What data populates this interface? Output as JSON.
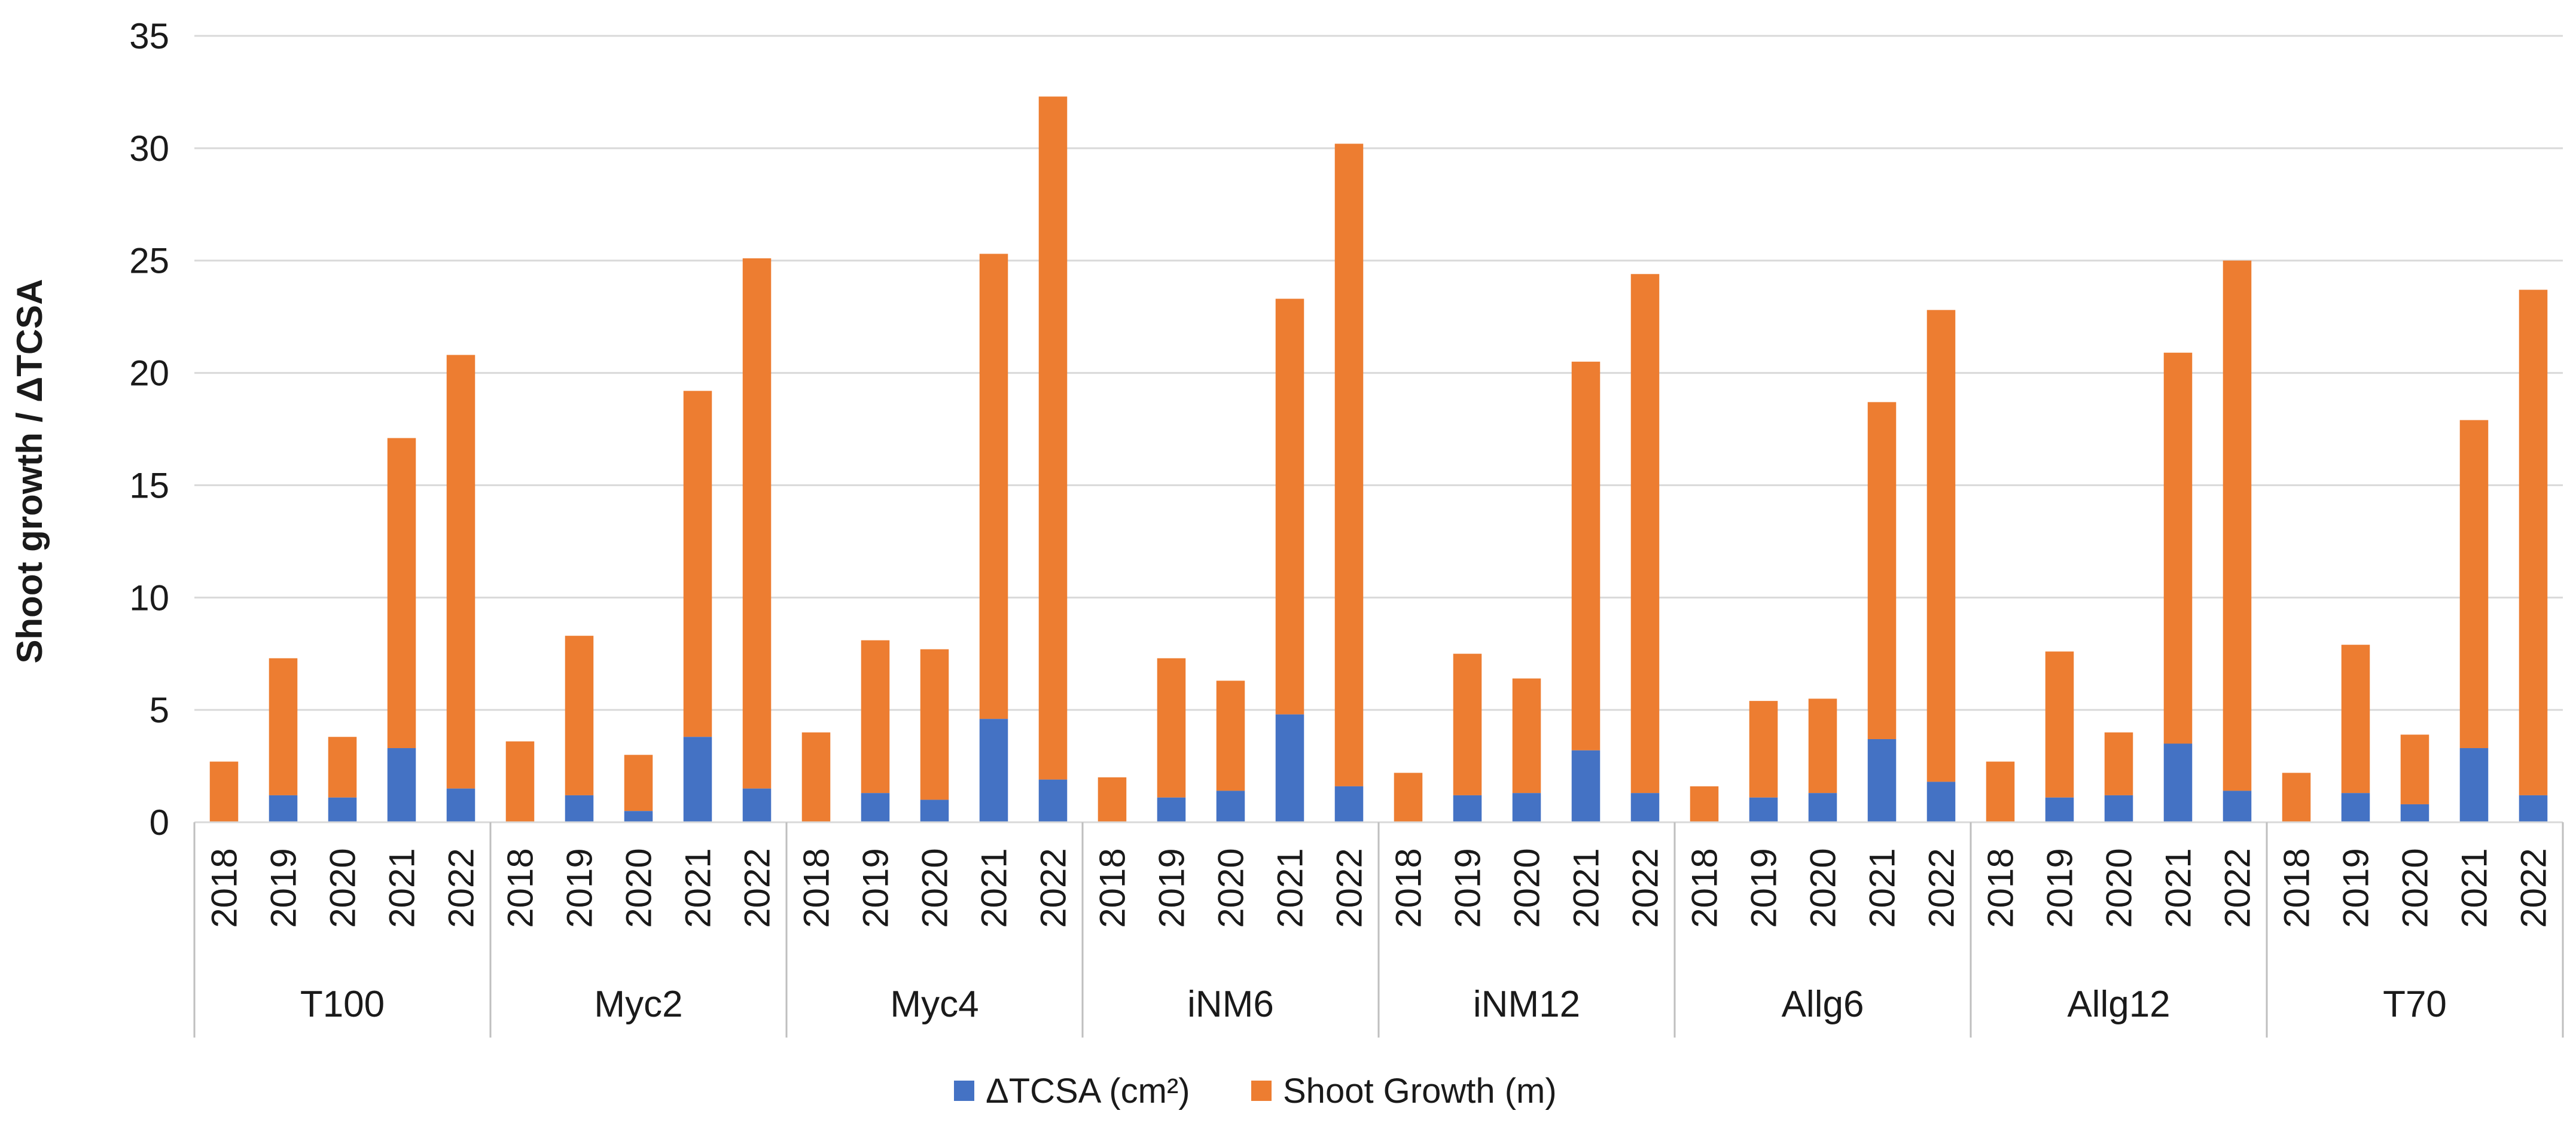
{
  "chart_data": {
    "type": "bar",
    "stacked": true,
    "title": "",
    "xlabel": "",
    "ylabel": "Shoot growth / ΔTCSA",
    "ylim": [
      0,
      35
    ],
    "yticks": [
      0,
      5,
      10,
      15,
      20,
      25,
      30,
      35
    ],
    "grid": true,
    "legend_position": "bottom",
    "groups": [
      {
        "name": "T100",
        "years": [
          "2018",
          "2019",
          "2020",
          "2021",
          "2022"
        ],
        "tcsa": [
          0,
          1.2,
          1.1,
          3.3,
          1.5
        ],
        "total": [
          2.7,
          7.3,
          3.8,
          17.1,
          20.8
        ]
      },
      {
        "name": "Myc2",
        "years": [
          "2018",
          "2019",
          "2020",
          "2021",
          "2022"
        ],
        "tcsa": [
          0,
          1.2,
          0.5,
          3.8,
          1.5
        ],
        "total": [
          3.6,
          8.3,
          3.0,
          19.2,
          25.1
        ]
      },
      {
        "name": "Myc4",
        "years": [
          "2018",
          "2019",
          "2020",
          "2021",
          "2022"
        ],
        "tcsa": [
          0,
          1.3,
          1.0,
          4.6,
          1.9
        ],
        "total": [
          4.0,
          8.1,
          7.7,
          25.3,
          32.3
        ]
      },
      {
        "name": "iNM6",
        "years": [
          "2018",
          "2019",
          "2020",
          "2021",
          "2022"
        ],
        "tcsa": [
          0,
          1.1,
          1.4,
          4.8,
          1.6
        ],
        "total": [
          2.0,
          7.3,
          6.3,
          23.3,
          30.2
        ]
      },
      {
        "name": "iNM12",
        "years": [
          "2018",
          "2019",
          "2020",
          "2021",
          "2022"
        ],
        "tcsa": [
          0,
          1.2,
          1.3,
          3.2,
          1.3
        ],
        "total": [
          2.2,
          7.5,
          6.4,
          20.5,
          24.4
        ]
      },
      {
        "name": "Allg6",
        "years": [
          "2018",
          "2019",
          "2020",
          "2021",
          "2022"
        ],
        "tcsa": [
          0,
          1.1,
          1.3,
          3.7,
          1.8
        ],
        "total": [
          1.6,
          5.4,
          5.5,
          18.7,
          22.8
        ]
      },
      {
        "name": "Allg12",
        "years": [
          "2018",
          "2019",
          "2020",
          "2021",
          "2022"
        ],
        "tcsa": [
          0,
          1.1,
          1.2,
          3.5,
          1.4
        ],
        "total": [
          2.7,
          7.6,
          4.0,
          20.9,
          25.0
        ]
      },
      {
        "name": "T70",
        "years": [
          "2018",
          "2019",
          "2020",
          "2021",
          "2022"
        ],
        "tcsa": [
          0,
          1.3,
          0.8,
          3.3,
          1.2
        ],
        "total": [
          2.2,
          7.9,
          3.9,
          17.9,
          23.7
        ]
      }
    ],
    "series": [
      {
        "name": "ΔTCSA (cm²)",
        "color": "#4472c4"
      },
      {
        "name": "Shoot Growth (m)",
        "color": "#ed7d31"
      }
    ],
    "note": "Bars are stacked: blue = ΔTCSA, orange = Shoot Growth; 'total' is the top of each stacked bar."
  }
}
